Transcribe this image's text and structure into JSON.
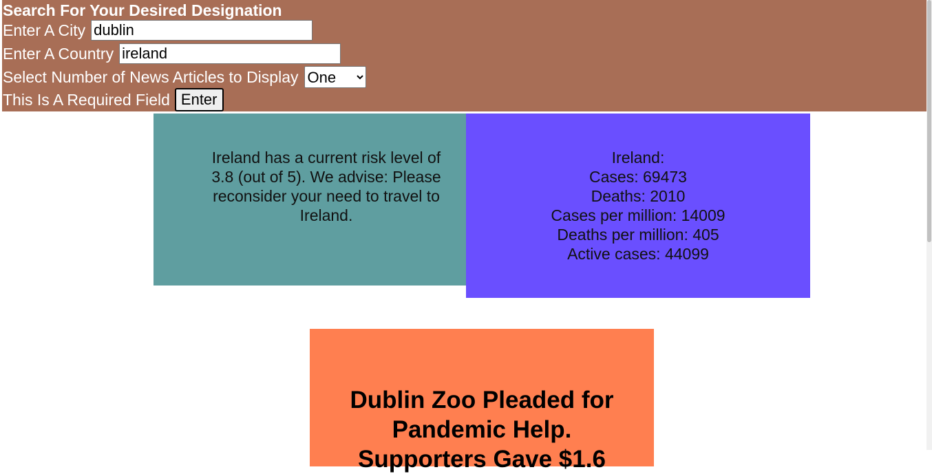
{
  "search": {
    "title": "Search For Your Desired Designation",
    "city_label": "Enter A City",
    "city_value": "dublin",
    "country_label": "Enter A Country",
    "country_value": "ireland",
    "articles_label": "Select Number of News Articles to Display",
    "articles_value": "One",
    "required_label": "This Is A Required Field",
    "button": "Enter"
  },
  "risk": {
    "text": "Ireland has a current risk level of 3.8 (out of 5). We advise: Please reconsider your need to travel to Ireland."
  },
  "stats": {
    "lines": [
      "Ireland:",
      "Cases: 69473",
      "Deaths: 2010",
      "Cases per million: 14009",
      "Deaths per million: 405",
      "Active cases: 44099"
    ]
  },
  "news": {
    "headline": "Dublin Zoo Pleaded for Pandemic Help. Supporters Gave $1.6"
  }
}
